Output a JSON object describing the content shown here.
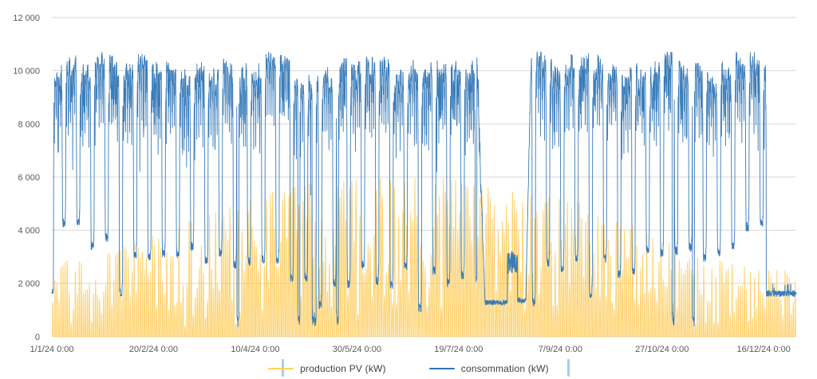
{
  "style": {
    "background": "#FFFFFF",
    "gridline_color": "#D9D9D9",
    "axis_label_color": "#595959",
    "legend_text_color": "#404040",
    "legend_side_marker_color": "#A9CCEE"
  },
  "chart_data": {
    "type": "line",
    "title": "",
    "xlabel": "",
    "ylabel": "",
    "grid": true,
    "legend_position": "bottom",
    "ylim": [
      0,
      12000
    ],
    "xlim_days": [
      0,
      366
    ],
    "x_start_label": "1/1/24 0:00",
    "seed": 7,
    "y_ticks": [
      {
        "label": "0",
        "value": 0
      },
      {
        "label": "2 000",
        "value": 2000
      },
      {
        "label": "4 000",
        "value": 4000
      },
      {
        "label": "6 000",
        "value": 6000
      },
      {
        "label": "8 000",
        "value": 8000
      },
      {
        "label": "10 000",
        "value": 10000
      },
      {
        "label": "12 000",
        "value": 12000
      }
    ],
    "x_ticks": [
      {
        "label": "1/1/24 0:00",
        "day": 0
      },
      {
        "label": "20/2/24 0:00",
        "day": 50
      },
      {
        "label": "10/4/24 0:00",
        "day": 100
      },
      {
        "label": "30/5/24 0:00",
        "day": 150
      },
      {
        "label": "19/7/24 0:00",
        "day": 200
      },
      {
        "label": "7/9/24 0:00",
        "day": 250
      },
      {
        "label": "27/10/24 0:00",
        "day": 300
      },
      {
        "label": "16/12/24 0:00",
        "day": 350
      }
    ],
    "series": [
      {
        "name": "production PV (kW)",
        "color": "#FFC84D",
        "legend_color": "#FFD35C",
        "pattern": "daily solar spikes, zero at night",
        "monthly_peak_envelope_kW": [
          2900,
          3700,
          4700,
          5400,
          5900,
          6050,
          5950,
          5600,
          5100,
          4100,
          3000,
          2500
        ],
        "max_kW": 6050
      },
      {
        "name": "consommation (kW)",
        "color": "#2E75B6",
        "legend_color": "#2E75B6",
        "pattern": "weekday plateau ~9000-10500 kW, weekend dips, summer and year-end shutdowns",
        "weekday_high_kW": 9900,
        "weekday_high_variation_kW": 420,
        "weekend_low_base_kW": 4100,
        "weekend_low_seasonal_drop_kW": 2000,
        "weekend_low_noise_kW": 900,
        "holiday_days": [
          91,
          121,
          128,
          129,
          140,
          305,
          315
        ],
        "holiday_low_kW": 350,
        "start_holiday": {
          "day": 0,
          "level_kW": 1700
        },
        "summer_shutdown": {
          "rampdown": [
            209,
            213
          ],
          "low1": [
            213,
            224,
            1280
          ],
          "hump": [
            224,
            229,
            2800
          ],
          "low2": [
            229,
            233,
            1350
          ],
          "rampup": [
            233,
            235.5
          ]
        },
        "year_end_shutdown": {
          "from_day": 351.2,
          "level_kW": 1620
        },
        "max_kW": 10700
      }
    ]
  },
  "legend": {
    "items": [
      {
        "label": "production PV (kW)"
      },
      {
        "label": "consommation (kW)"
      }
    ]
  }
}
